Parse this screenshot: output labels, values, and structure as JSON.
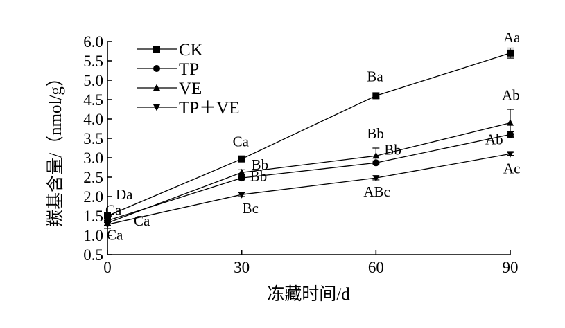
{
  "chart_data": {
    "type": "line",
    "xlabel": "冻藏时间/d",
    "ylabel": "羰基含量/（nmol/g）",
    "x": [
      0,
      30,
      60,
      90
    ],
    "x_ticks": [
      "0",
      "30",
      "60",
      "90"
    ],
    "xlim": [
      0,
      90
    ],
    "ylim": [
      0.5,
      6.0
    ],
    "y_ticks": [
      "0.5",
      "1.0",
      "1.5",
      "2.0",
      "2.5",
      "3.0",
      "3.5",
      "4.0",
      "4.5",
      "5.0",
      "5.5",
      "6.0"
    ],
    "grid": false,
    "legend_position": "top-left",
    "series": [
      {
        "name": "CK",
        "marker": "square",
        "values": [
          1.5,
          2.97,
          4.6,
          5.7
        ],
        "errors": [
          0.05,
          0.05,
          0.07,
          0.13
        ],
        "labels": [
          "Da",
          "Ca",
          "Ba",
          "Aa"
        ]
      },
      {
        "name": "TP",
        "marker": "circle",
        "values": [
          1.38,
          2.48,
          2.87,
          3.6
        ],
        "errors": [
          0.05,
          0.05,
          0.05,
          0.07
        ],
        "labels": [
          "Ca",
          "Bb",
          "Bb",
          "Ab"
        ]
      },
      {
        "name": "VE",
        "marker": "triangle-up",
        "values": [
          1.32,
          2.62,
          3.05,
          3.9
        ],
        "errors": [
          0.06,
          0.07,
          0.2,
          0.35
        ],
        "labels": [
          "Ca",
          "Bb",
          "Bb",
          "Ab"
        ]
      },
      {
        "name": "TP＋VE",
        "marker": "triangle-down",
        "values": [
          1.28,
          2.05,
          2.48,
          3.1
        ],
        "errors": [
          0.1,
          0.05,
          0.05,
          0.04
        ],
        "labels": [
          "Ca",
          "Bc",
          "ABc",
          "Ac"
        ]
      }
    ]
  }
}
